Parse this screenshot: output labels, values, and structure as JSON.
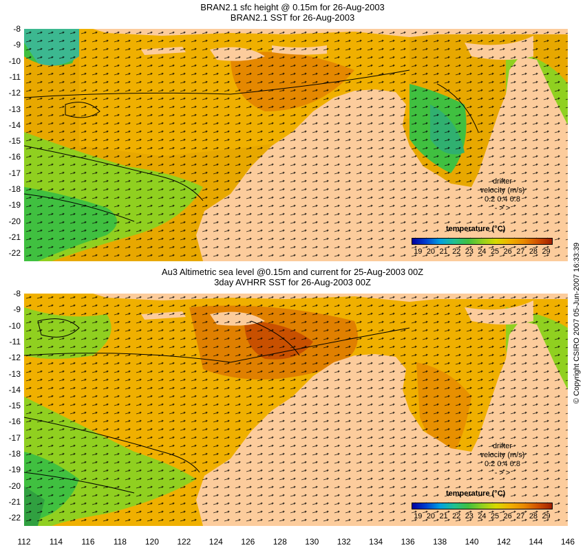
{
  "panels": [
    {
      "title_line1": "BRAN2.1 sfc height @ 0.15m for 26-Aug-2003",
      "title_line2": "BRAN2.1 SST for 26-Aug-2003"
    },
    {
      "title_line1": "Au3 Altimetric sea level  @0.15m and current for 25-Aug-2003 00Z",
      "title_line2": "3day AVHRR SST for 26-Aug-2003 00Z"
    }
  ],
  "axes": {
    "y_labels": [
      "-8",
      "-9",
      "-10",
      "-11",
      "-12",
      "-13",
      "-14",
      "-15",
      "-16",
      "-17",
      "-18",
      "-19",
      "-20",
      "-21",
      "-22"
    ],
    "x_labels": [
      "112",
      "114",
      "116",
      "118",
      "120",
      "122",
      "124",
      "126",
      "128",
      "130",
      "132",
      "134",
      "136",
      "138",
      "140",
      "142",
      "144",
      "146"
    ],
    "lon_range": [
      112,
      146
    ],
    "lat_range": [
      -8,
      -22.5
    ]
  },
  "legend": {
    "title": "temperature (°C)",
    "ticks": [
      "19",
      "20",
      "21",
      "22",
      "23",
      "24",
      "25",
      "26",
      "27",
      "28",
      "29"
    ],
    "colors": [
      "#0000a0",
      "#0040d0",
      "#00a0e0",
      "#20c090",
      "#40c040",
      "#90d020",
      "#d8d800",
      "#f0b000",
      "#e88800",
      "#d05000",
      "#a02000"
    ]
  },
  "drifter": {
    "label1": "drifter",
    "label2": "velocity (m/s)",
    "scale": "0.2 0.4 0.8",
    "arrows": "-   >   >"
  },
  "copyright": "© Copyright CSIRO 2007   05-Jun-2007 16:33:39",
  "colors": {
    "land": "#fccc9c",
    "warm": "#f0a000",
    "cool": "#48c848"
  }
}
